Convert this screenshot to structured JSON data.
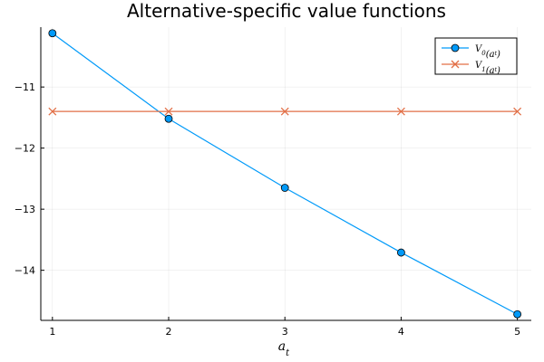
{
  "chart_data": {
    "type": "line",
    "title": "Alternative-specific value functions",
    "xlabel": "a_t",
    "ylabel": "",
    "x": [
      1,
      2,
      3,
      4,
      5
    ],
    "xticks": [
      "1",
      "2",
      "3",
      "4",
      "5"
    ],
    "yticks": [
      "−11",
      "−12",
      "−13",
      "−14"
    ],
    "ytick_values": [
      -11,
      -12,
      -13,
      -14
    ],
    "xlim": [
      0.9,
      5.12
    ],
    "ylim": [
      -14.82,
      -10.02
    ],
    "grid": true,
    "legend_position": "top-right",
    "series": [
      {
        "name": "V_0(a_t)",
        "values": [
          -10.12,
          -11.52,
          -12.65,
          -13.71,
          -14.72
        ],
        "color": "#009af9",
        "marker": "circle"
      },
      {
        "name": "V_1(a_t)",
        "values": [
          -11.4,
          -11.4,
          -11.4,
          -11.4,
          -11.4
        ],
        "color": "#e26f46",
        "marker": "x"
      }
    ]
  }
}
